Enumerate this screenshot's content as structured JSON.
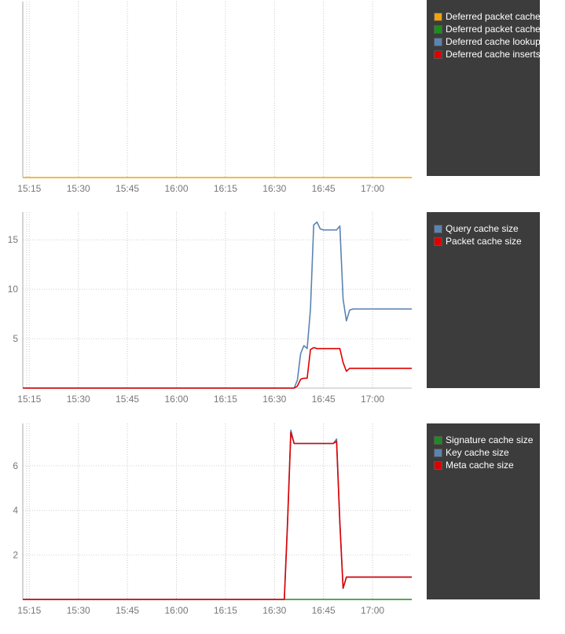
{
  "chart_data": [
    {
      "type": "line",
      "x_ticks": [
        "15:15",
        "15:30",
        "15:45",
        "16:00",
        "16:15",
        "16:30",
        "16:45",
        "17:00"
      ],
      "y_ticks": [],
      "ylim": [
        0,
        1
      ],
      "series": [
        {
          "name": "Deferred packet cache",
          "color": "#f0a30a",
          "x": [
            "15:13",
            "17:12"
          ],
          "values": [
            0,
            0
          ]
        },
        {
          "name": "Deferred packet cache",
          "color": "#1e8c1e",
          "x": [],
          "values": []
        },
        {
          "name": "Deferred cache lookups",
          "color": "#5b84b1",
          "x": [],
          "values": []
        },
        {
          "name": "Deferred cache inserts",
          "color": "#e00000",
          "x": [],
          "values": []
        }
      ]
    },
    {
      "type": "line",
      "x_ticks": [
        "15:15",
        "15:30",
        "15:45",
        "16:00",
        "16:15",
        "16:30",
        "16:45",
        "17:00"
      ],
      "y_ticks": [
        5,
        10,
        15
      ],
      "ylim": [
        0,
        17.8
      ],
      "series": [
        {
          "name": "Query cache size",
          "color": "#5b84b1",
          "x": [
            "15:13",
            "16:36",
            "16:37",
            "16:38",
            "16:39",
            "16:40",
            "16:41",
            "16:42",
            "16:43",
            "16:44",
            "16:45",
            "16:46",
            "16:47",
            "16:48",
            "16:49",
            "16:50",
            "16:51",
            "16:52",
            "16:53",
            "16:54",
            "16:55",
            "16:56",
            "17:12"
          ],
          "values": [
            0,
            0,
            0.8,
            3.5,
            4.3,
            4.0,
            8,
            16.5,
            16.8,
            16.1,
            16,
            16,
            16,
            16,
            16,
            16.4,
            9,
            6.8,
            7.9,
            8,
            8,
            8,
            8
          ]
        },
        {
          "name": "Packet cache size",
          "color": "#e00000",
          "x": [
            "15:13",
            "16:36",
            "16:37",
            "16:38",
            "16:39",
            "16:40",
            "16:41",
            "16:42",
            "16:43",
            "16:44",
            "16:45",
            "16:46",
            "16:47",
            "16:48",
            "16:49",
            "16:50",
            "16:51",
            "16:52",
            "16:53",
            "16:54",
            "16:55",
            "16:56",
            "17:12"
          ],
          "values": [
            0,
            0,
            0.2,
            0.9,
            1.0,
            1.0,
            3.9,
            4.1,
            4.0,
            4.0,
            4.0,
            4.0,
            4.0,
            4.0,
            4.0,
            4.0,
            2.6,
            1.7,
            2.0,
            2.0,
            2.0,
            2.0,
            2.0
          ]
        }
      ]
    },
    {
      "type": "line",
      "x_ticks": [
        "15:15",
        "15:30",
        "15:45",
        "16:00",
        "16:15",
        "16:30",
        "16:45",
        "17:00"
      ],
      "y_ticks": [
        2,
        4,
        6
      ],
      "ylim": [
        0,
        7.9
      ],
      "series": [
        {
          "name": "Signature cache size",
          "color": "#1e8c1e",
          "x": [
            "15:13",
            "17:12"
          ],
          "values": [
            0,
            0
          ]
        },
        {
          "name": "Key cache size",
          "color": "#5b84b1",
          "x": [
            "15:13",
            "16:33",
            "16:34",
            "16:35",
            "16:36",
            "16:37",
            "16:38",
            "16:48",
            "16:49",
            "16:50",
            "16:51",
            "16:52",
            "16:53",
            "16:54",
            "17:12"
          ],
          "values": [
            0,
            0,
            3.5,
            7.6,
            7.0,
            7.0,
            7.0,
            7.0,
            7.2,
            3.5,
            0.5,
            1.0,
            1.0,
            1.0,
            1.0
          ]
        },
        {
          "name": "Meta cache size",
          "color": "#e00000",
          "x": [
            "15:13",
            "16:33",
            "16:34",
            "16:35",
            "16:36",
            "16:37",
            "16:38",
            "16:48",
            "16:49",
            "16:50",
            "16:51",
            "16:52",
            "16:53",
            "16:54",
            "17:12"
          ],
          "values": [
            0,
            0,
            3.4,
            7.5,
            7.0,
            7.0,
            7.0,
            7.0,
            7.1,
            3.4,
            0.5,
            1.0,
            1.0,
            1.0,
            1.0
          ]
        }
      ]
    }
  ],
  "legends": [
    {
      "items": [
        {
          "label": "Deferred packet cache",
          "color": "#f0a30a"
        },
        {
          "label": "Deferred packet cache",
          "color": "#1e8c1e"
        },
        {
          "label": "Deferred cache lookups",
          "color": "#5b84b1"
        },
        {
          "label": "Deferred cache inserts/",
          "color": "#e00000"
        }
      ]
    },
    {
      "items": [
        {
          "label": "Query cache size",
          "color": "#5b84b1"
        },
        {
          "label": "Packet cache size",
          "color": "#e00000"
        }
      ]
    },
    {
      "items": [
        {
          "label": "Signature cache size",
          "color": "#1e8c1e"
        },
        {
          "label": "Key cache size",
          "color": "#5b84b1"
        },
        {
          "label": "Meta cache size",
          "color": "#e00000"
        }
      ]
    }
  ]
}
